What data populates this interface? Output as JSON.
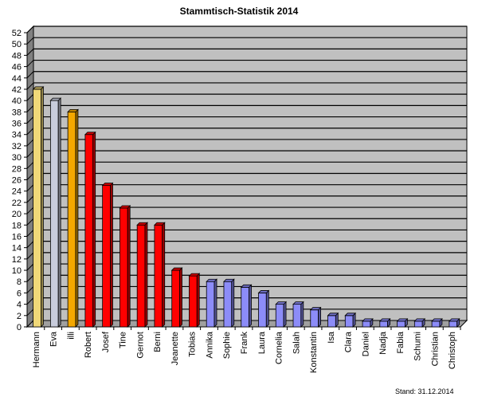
{
  "chart_data": {
    "type": "bar",
    "title": "Stammtisch-Statistik  2014",
    "footer": "Stand: 31.12.2014",
    "xlabel": "",
    "ylabel": "",
    "ylim": [
      0,
      52
    ],
    "y_tick_step": 2,
    "grid": true,
    "legend": null,
    "categories": [
      "Hermann",
      "Eva",
      "illi",
      "Robert",
      "Josef",
      "Tine",
      "Gernot",
      "Berni",
      "Jeanette",
      "Tobias",
      "Annika",
      "Sophie",
      "Frank",
      "Laura",
      "Cornelia",
      "Salah",
      "Konstantin",
      "Isa",
      "Clara",
      "Daniel",
      "Nadja",
      "Fabia",
      "Schumi",
      "Christian",
      "Christoph"
    ],
    "values": [
      42,
      40,
      38,
      34,
      25,
      21,
      18,
      18,
      10,
      9,
      8,
      8,
      7,
      6,
      4,
      4,
      3,
      2,
      2,
      1,
      1,
      1,
      1,
      1,
      1
    ],
    "colors": [
      "#f0d878",
      "#c8ccdc",
      "#f4a800",
      "#ff0000",
      "#ff0000",
      "#ff0000",
      "#ff0000",
      "#ff0000",
      "#ff0000",
      "#ff0000",
      "#8c8cf8",
      "#8c8cf8",
      "#8c8cf8",
      "#8c8cf8",
      "#8c8cf8",
      "#8c8cf8",
      "#8c8cf8",
      "#8c8cf8",
      "#8c8cf8",
      "#8c8cf8",
      "#8c8cf8",
      "#8c8cf8",
      "#8c8cf8",
      "#8c8cf8",
      "#8c8cf8"
    ]
  },
  "style": {
    "plot_bg": "#c0c0c0",
    "floor_bg": "#a0a0a0",
    "gridline": "#000000"
  }
}
